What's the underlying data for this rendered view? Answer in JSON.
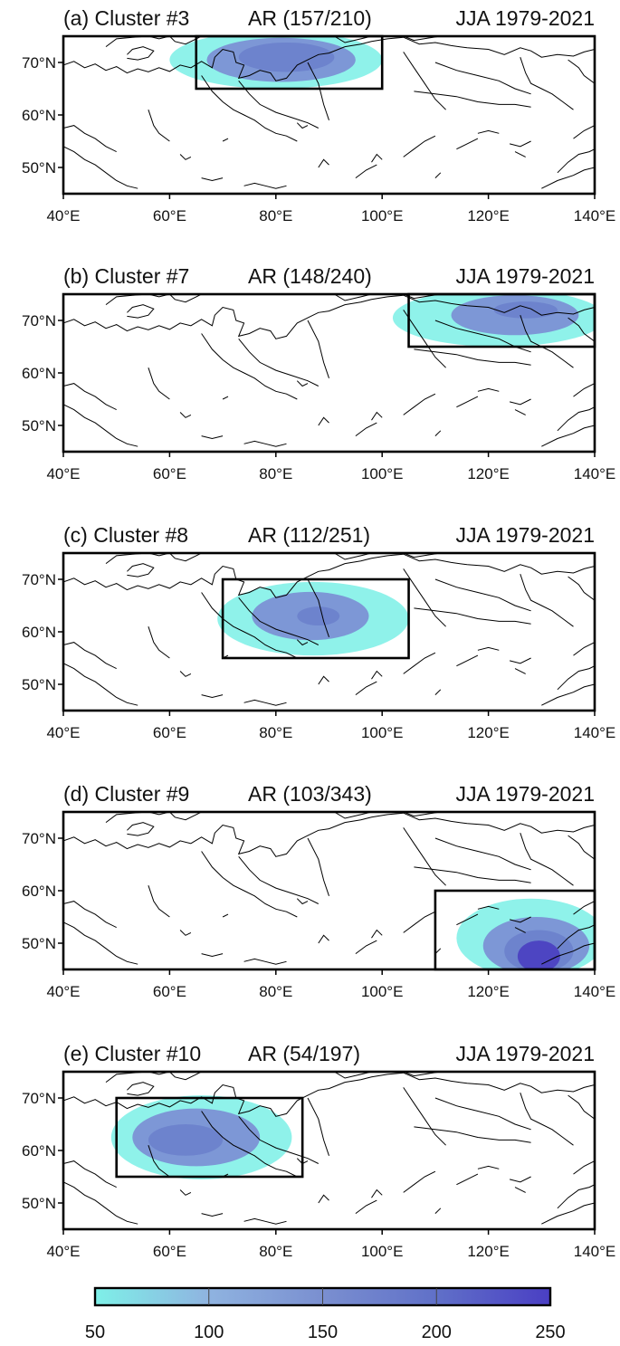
{
  "figure": {
    "common_title_right": "JJA 1979-2021",
    "lon_ticks": [
      "40°E",
      "60°E",
      "80°E",
      "100°E",
      "120°E",
      "140°E"
    ],
    "lat_ticks": [
      "50°N",
      "60°N",
      "70°N"
    ],
    "map_extent": {
      "lon": [
        40,
        140
      ],
      "lat": [
        45,
        75
      ]
    },
    "colorbar": {
      "ticks": [
        "50",
        "100",
        "150",
        "200",
        "250"
      ],
      "range": [
        50,
        250
      ],
      "colors": [
        "#7ef0e8",
        "#8fb3e0",
        "#7a8fd0",
        "#6070c8",
        "#4a3fc4"
      ]
    },
    "shading_colors": {
      "level1": "#8ff2ea",
      "level2": "#7d97d6",
      "level3": "#6d83cd",
      "level4": "#4d45c2"
    }
  },
  "panels": [
    {
      "id": "a",
      "label": "(a) Cluster #3",
      "ar_text": "AR (157/210)",
      "season_text": "JJA 1979-2021",
      "box": {
        "lon": [
          65,
          100
        ],
        "lat": [
          65,
          75
        ]
      },
      "blobs": [
        {
          "level": "level1",
          "lon_center": 80,
          "lat_center": 70.5,
          "lon_radius": 20,
          "lat_radius": 5.5
        },
        {
          "level": "level2",
          "lon_center": 81,
          "lat_center": 70.5,
          "lon_radius": 14,
          "lat_radius": 4.2
        },
        {
          "level": "level3",
          "lon_center": 82,
          "lat_center": 71,
          "lon_radius": 9,
          "lat_radius": 2.8
        }
      ]
    },
    {
      "id": "b",
      "label": "(b) Cluster #7",
      "ar_text": "AR (148/240)",
      "season_text": "JJA 1979-2021",
      "box": {
        "lon": [
          105,
          140
        ],
        "lat": [
          65,
          75
        ]
      },
      "blobs": [
        {
          "level": "level1",
          "lon_center": 122,
          "lat_center": 70.5,
          "lon_radius": 20,
          "lat_radius": 5.5
        },
        {
          "level": "level2",
          "lon_center": 125,
          "lat_center": 71,
          "lon_radius": 12,
          "lat_radius": 3.8
        },
        {
          "level": "level3",
          "lon_center": 127,
          "lat_center": 72,
          "lon_radius": 6,
          "lat_radius": 1.6
        }
      ]
    },
    {
      "id": "c",
      "label": "(c) Cluster #8",
      "ar_text": "AR (112/251)",
      "season_text": "JJA 1979-2021",
      "box": {
        "lon": [
          70,
          105
        ],
        "lat": [
          55,
          70
        ]
      },
      "blobs": [
        {
          "level": "level1",
          "lon_center": 87,
          "lat_center": 62.5,
          "lon_radius": 18,
          "lat_radius": 7
        },
        {
          "level": "level2",
          "lon_center": 86.5,
          "lat_center": 63,
          "lon_radius": 11,
          "lat_radius": 4.6
        },
        {
          "level": "level3",
          "lon_center": 88,
          "lat_center": 63,
          "lon_radius": 4,
          "lat_radius": 1.8
        }
      ]
    },
    {
      "id": "d",
      "label": "(d) Cluster #9",
      "ar_text": "AR (103/343)",
      "season_text": "JJA 1979-2021",
      "box": {
        "lon": [
          110,
          140
        ],
        "lat": [
          45,
          60
        ]
      },
      "blobs": [
        {
          "level": "level1",
          "lon_center": 128,
          "lat_center": 51,
          "lon_radius": 14,
          "lat_radius": 7.5
        },
        {
          "level": "level2",
          "lon_center": 129,
          "lat_center": 49.5,
          "lon_radius": 10,
          "lat_radius": 5.5
        },
        {
          "level": "level3",
          "lon_center": 129.5,
          "lat_center": 48.5,
          "lon_radius": 6.5,
          "lat_radius": 4
        },
        {
          "level": "level4",
          "lon_center": 129.5,
          "lat_center": 47.5,
          "lon_radius": 4,
          "lat_radius": 3
        }
      ]
    },
    {
      "id": "e",
      "label": "(e) Cluster #10",
      "ar_text": "AR (54/197)",
      "season_text": "JJA 1979-2021",
      "box": {
        "lon": [
          50,
          85
        ],
        "lat": [
          55,
          70
        ]
      },
      "blobs": [
        {
          "level": "level1",
          "lon_center": 66,
          "lat_center": 62.5,
          "lon_radius": 17,
          "lat_radius": 8
        },
        {
          "level": "level2",
          "lon_center": 65,
          "lat_center": 62.5,
          "lon_radius": 12,
          "lat_radius": 5.5
        },
        {
          "level": "level3",
          "lon_center": 63,
          "lat_center": 62,
          "lon_radius": 7,
          "lat_radius": 3
        }
      ]
    }
  ]
}
